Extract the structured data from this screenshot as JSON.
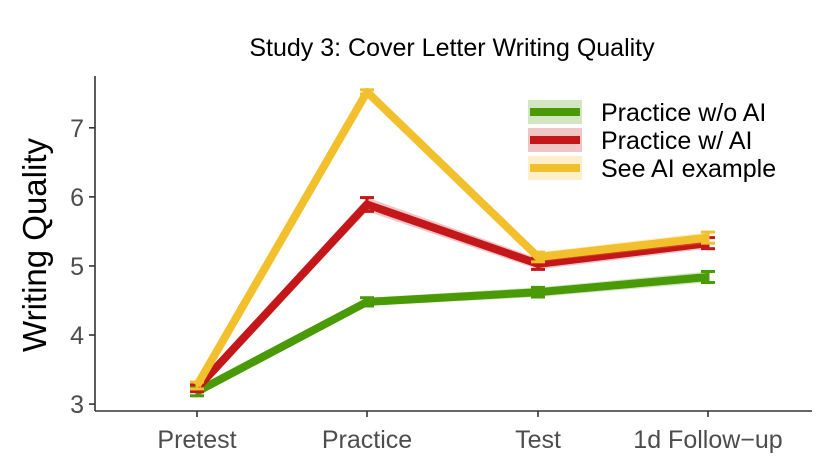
{
  "chart_data": {
    "type": "line",
    "title": "Study 3: Cover Letter Writing Quality",
    "xlabel": "",
    "ylabel": "Writing Quality",
    "categories": [
      "Pretest",
      "Practice",
      "Test",
      "1d Follow−up"
    ],
    "ylim": [
      2.9,
      7.75
    ],
    "yticks": [
      3,
      4,
      5,
      6,
      7
    ],
    "grid": false,
    "legend_position": "top-right",
    "series": [
      {
        "name": "Practice w/o AI",
        "color": "#4a9a07",
        "values": [
          3.18,
          4.48,
          4.62,
          4.84
        ],
        "errors": [
          0.06,
          0.06,
          0.07,
          0.08
        ]
      },
      {
        "name": "Practice w/ AI",
        "color": "#c4171a",
        "values": [
          3.23,
          5.89,
          5.03,
          5.33
        ],
        "errors": [
          0.05,
          0.1,
          0.08,
          0.08
        ]
      },
      {
        "name": "See AI example",
        "color": "#f2c02c",
        "values": [
          3.27,
          7.52,
          5.13,
          5.41
        ],
        "errors": [
          0.05,
          0.03,
          0.07,
          0.08
        ]
      }
    ]
  }
}
